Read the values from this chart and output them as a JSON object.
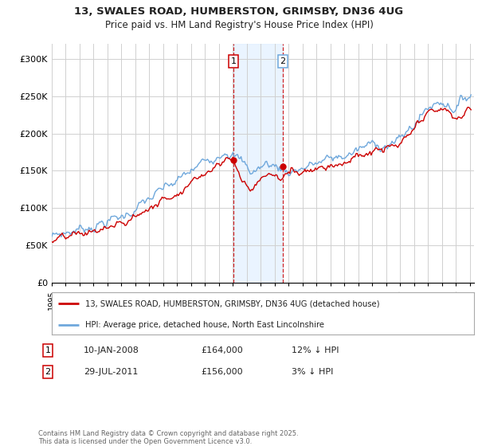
{
  "title_line1": "13, SWALES ROAD, HUMBERSTON, GRIMSBY, DN36 4UG",
  "title_line2": "Price paid vs. HM Land Registry's House Price Index (HPI)",
  "ylim": [
    0,
    320000
  ],
  "yticks": [
    0,
    50000,
    100000,
    150000,
    200000,
    250000,
    300000
  ],
  "ytick_labels": [
    "£0",
    "£50K",
    "£100K",
    "£150K",
    "£200K",
    "£250K",
    "£300K"
  ],
  "hpi_color": "#6fa8dc",
  "price_color": "#cc0000",
  "sale1_date": 2008.04,
  "sale1_price": 164000,
  "sale2_date": 2011.58,
  "sale2_price": 156000,
  "legend_line1": "13, SWALES ROAD, HUMBERSTON, GRIMSBY, DN36 4UG (detached house)",
  "legend_line2": "HPI: Average price, detached house, North East Lincolnshire",
  "annotation1_date": "10-JAN-2008",
  "annotation1_price": "£164,000",
  "annotation1_hpi": "12% ↓ HPI",
  "annotation2_date": "29-JUL-2011",
  "annotation2_price": "£156,000",
  "annotation2_hpi": "3% ↓ HPI",
  "footer": "Contains HM Land Registry data © Crown copyright and database right 2025.\nThis data is licensed under the Open Government Licence v3.0.",
  "bg_color": "#ffffff",
  "grid_color": "#d0d0d0",
  "shade_color": "#ddeeff"
}
